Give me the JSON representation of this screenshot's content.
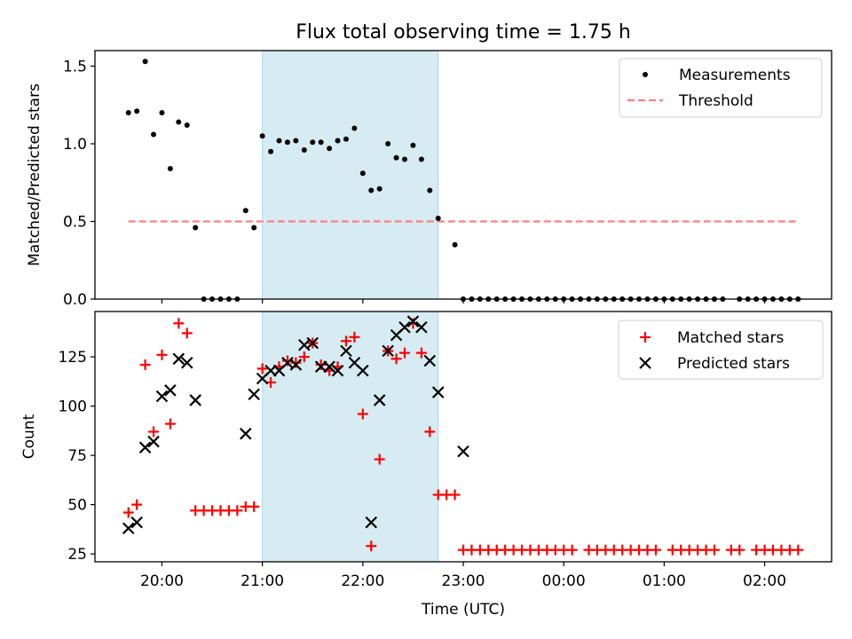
{
  "title": "Flux total observing time = 1.75 h",
  "colors": {
    "measurement": "#000000",
    "threshold": "#ff7f7f",
    "matched": "#ff0000",
    "predicted": "#000000",
    "highlight": "#add8e6"
  },
  "chart_data": [
    {
      "type": "scatter",
      "ylabel": "Matched/Predicted stars",
      "xlabel": "",
      "x_axis_type": "time",
      "xlim": [
        "19:20",
        "02:40"
      ],
      "ylim": [
        0,
        1.6
      ],
      "yticks": [
        0.0,
        0.5,
        1.0,
        1.5
      ],
      "ytick_labels": [
        "0.0",
        "0.5",
        "1.0",
        "1.5"
      ],
      "legend": {
        "placement": "top-right",
        "entries": [
          "Measurements",
          "Threshold"
        ]
      },
      "highlight_span": [
        "21:00",
        "22:45"
      ],
      "threshold": {
        "name": "Threshold",
        "value": 0.5,
        "x_range": [
          "19:40",
          "02:20"
        ]
      },
      "series": [
        {
          "name": "Measurements",
          "marker": "dot",
          "points": [
            [
              "19:40",
              1.2
            ],
            [
              "19:45",
              1.21
            ],
            [
              "19:50",
              1.53
            ],
            [
              "19:55",
              1.06
            ],
            [
              "20:00",
              1.2
            ],
            [
              "20:05",
              0.84
            ],
            [
              "20:10",
              1.14
            ],
            [
              "20:15",
              1.12
            ],
            [
              "20:20",
              0.46
            ],
            [
              "20:25",
              0.0
            ],
            [
              "20:30",
              0.0
            ],
            [
              "20:35",
              0.0
            ],
            [
              "20:40",
              0.0
            ],
            [
              "20:45",
              0.0
            ],
            [
              "20:50",
              0.57
            ],
            [
              "20:55",
              0.46
            ],
            [
              "21:00",
              1.05
            ],
            [
              "21:05",
              0.95
            ],
            [
              "21:10",
              1.02
            ],
            [
              "21:15",
              1.01
            ],
            [
              "21:20",
              1.02
            ],
            [
              "21:25",
              0.96
            ],
            [
              "21:30",
              1.01
            ],
            [
              "21:35",
              1.01
            ],
            [
              "21:40",
              0.97
            ],
            [
              "21:45",
              1.02
            ],
            [
              "21:50",
              1.03
            ],
            [
              "21:55",
              1.1
            ],
            [
              "22:00",
              0.81
            ],
            [
              "22:05",
              0.7
            ],
            [
              "22:10",
              0.71
            ],
            [
              "22:15",
              1.0
            ],
            [
              "22:20",
              0.91
            ],
            [
              "22:25",
              0.9
            ],
            [
              "22:30",
              0.99
            ],
            [
              "22:35",
              0.9
            ],
            [
              "22:40",
              0.7
            ],
            [
              "22:45",
              0.52
            ],
            [
              "22:55",
              0.35
            ],
            [
              "23:00",
              0.0
            ],
            [
              "23:05",
              0.0
            ],
            [
              "23:10",
              0.0
            ],
            [
              "23:15",
              0.0
            ],
            [
              "23:20",
              0.0
            ],
            [
              "23:25",
              0.0
            ],
            [
              "23:30",
              0.0
            ],
            [
              "23:35",
              0.0
            ],
            [
              "23:40",
              0.0
            ],
            [
              "23:45",
              0.0
            ],
            [
              "23:50",
              0.0
            ],
            [
              "23:55",
              0.0
            ],
            [
              "00:00",
              0.0
            ],
            [
              "00:05",
              0.0
            ],
            [
              "00:10",
              0.0
            ],
            [
              "00:15",
              0.0
            ],
            [
              "00:20",
              0.0
            ],
            [
              "00:25",
              0.0
            ],
            [
              "00:30",
              0.0
            ],
            [
              "00:35",
              0.0
            ],
            [
              "00:40",
              0.0
            ],
            [
              "00:45",
              0.0
            ],
            [
              "00:50",
              0.0
            ],
            [
              "00:55",
              0.0
            ],
            [
              "01:00",
              0.0
            ],
            [
              "01:05",
              0.0
            ],
            [
              "01:10",
              0.0
            ],
            [
              "01:15",
              0.0
            ],
            [
              "01:20",
              0.0
            ],
            [
              "01:25",
              0.0
            ],
            [
              "01:30",
              0.0
            ],
            [
              "01:35",
              0.0
            ],
            [
              "01:45",
              0.0
            ],
            [
              "01:50",
              0.0
            ],
            [
              "01:55",
              0.0
            ],
            [
              "02:00",
              0.0
            ],
            [
              "02:05",
              0.0
            ],
            [
              "02:10",
              0.0
            ],
            [
              "02:15",
              0.0
            ],
            [
              "02:20",
              0.0
            ]
          ]
        }
      ]
    },
    {
      "type": "scatter",
      "ylabel": "Count",
      "xlabel": "Time (UTC)",
      "x_axis_type": "time",
      "xlim": [
        "19:20",
        "02:40"
      ],
      "ylim": [
        21,
        148
      ],
      "yticks": [
        25,
        50,
        75,
        100,
        125
      ],
      "ytick_labels": [
        "25",
        "50",
        "75",
        "100",
        "125"
      ],
      "xticks": [
        "20:00",
        "21:00",
        "22:00",
        "23:00",
        "00:00",
        "01:00",
        "02:00"
      ],
      "xtick_labels": [
        "20:00",
        "21:00",
        "22:00",
        "23:00",
        "00:00",
        "01:00",
        "02:00"
      ],
      "legend": {
        "placement": "top-right",
        "entries": [
          "Matched stars",
          "Predicted stars"
        ]
      },
      "highlight_span": [
        "21:00",
        "22:45"
      ],
      "series": [
        {
          "name": "Matched stars",
          "marker": "plus",
          "points": [
            [
              "19:40",
              46
            ],
            [
              "19:45",
              50
            ],
            [
              "19:50",
              121
            ],
            [
              "19:55",
              87
            ],
            [
              "20:00",
              126
            ],
            [
              "20:05",
              91
            ],
            [
              "20:10",
              142
            ],
            [
              "20:15",
              137
            ],
            [
              "20:20",
              47
            ],
            [
              "20:25",
              47
            ],
            [
              "20:30",
              47
            ],
            [
              "20:35",
              47
            ],
            [
              "20:40",
              47
            ],
            [
              "20:45",
              47
            ],
            [
              "20:50",
              49
            ],
            [
              "20:55",
              49
            ],
            [
              "21:00",
              119
            ],
            [
              "21:05",
              112
            ],
            [
              "21:10",
              120
            ],
            [
              "21:15",
              123
            ],
            [
              "21:20",
              122
            ],
            [
              "21:25",
              125
            ],
            [
              "21:30",
              132
            ],
            [
              "21:35",
              121
            ],
            [
              "21:40",
              118
            ],
            [
              "21:45",
              120
            ],
            [
              "21:50",
              133
            ],
            [
              "21:55",
              135
            ],
            [
              "22:00",
              96
            ],
            [
              "22:05",
              29
            ],
            [
              "22:10",
              73
            ],
            [
              "22:15",
              128
            ],
            [
              "22:20",
              124
            ],
            [
              "22:25",
              127
            ],
            [
              "22:30",
              142
            ],
            [
              "22:35",
              127
            ],
            [
              "22:40",
              87
            ],
            [
              "22:45",
              55
            ],
            [
              "22:50",
              55
            ],
            [
              "22:55",
              55
            ],
            [
              "23:00",
              27
            ],
            [
              "23:05",
              27
            ],
            [
              "23:10",
              27
            ],
            [
              "23:15",
              27
            ],
            [
              "23:20",
              27
            ],
            [
              "23:25",
              27
            ],
            [
              "23:30",
              27
            ],
            [
              "23:35",
              27
            ],
            [
              "23:40",
              27
            ],
            [
              "23:45",
              27
            ],
            [
              "23:50",
              27
            ],
            [
              "23:55",
              27
            ],
            [
              "00:00",
              27
            ],
            [
              "00:05",
              27
            ],
            [
              "00:15",
              27
            ],
            [
              "00:20",
              27
            ],
            [
              "00:25",
              27
            ],
            [
              "00:30",
              27
            ],
            [
              "00:35",
              27
            ],
            [
              "00:40",
              27
            ],
            [
              "00:45",
              27
            ],
            [
              "00:50",
              27
            ],
            [
              "00:55",
              27
            ],
            [
              "01:05",
              27
            ],
            [
              "01:10",
              27
            ],
            [
              "01:15",
              27
            ],
            [
              "01:20",
              27
            ],
            [
              "01:25",
              27
            ],
            [
              "01:30",
              27
            ],
            [
              "01:40",
              27
            ],
            [
              "01:45",
              27
            ],
            [
              "01:55",
              27
            ],
            [
              "02:00",
              27
            ],
            [
              "02:05",
              27
            ],
            [
              "02:10",
              27
            ],
            [
              "02:15",
              27
            ],
            [
              "02:20",
              27
            ]
          ]
        },
        {
          "name": "Predicted stars",
          "marker": "x",
          "points": [
            [
              "19:40",
              38
            ],
            [
              "19:45",
              41
            ],
            [
              "19:50",
              79
            ],
            [
              "19:55",
              82
            ],
            [
              "20:00",
              105
            ],
            [
              "20:05",
              108
            ],
            [
              "20:10",
              124
            ],
            [
              "20:15",
              122
            ],
            [
              "20:20",
              103
            ],
            [
              "20:50",
              86
            ],
            [
              "20:55",
              106
            ],
            [
              "21:00",
              114
            ],
            [
              "21:05",
              118
            ],
            [
              "21:10",
              118
            ],
            [
              "21:15",
              122
            ],
            [
              "21:20",
              121
            ],
            [
              "21:25",
              131
            ],
            [
              "21:30",
              132
            ],
            [
              "21:35",
              120
            ],
            [
              "21:40",
              120
            ],
            [
              "21:45",
              118
            ],
            [
              "21:50",
              128
            ],
            [
              "21:55",
              122
            ],
            [
              "22:00",
              118
            ],
            [
              "22:05",
              41
            ],
            [
              "22:10",
              103
            ],
            [
              "22:15",
              128
            ],
            [
              "22:20",
              136
            ],
            [
              "22:25",
              140
            ],
            [
              "22:30",
              143
            ],
            [
              "22:35",
              140
            ],
            [
              "22:40",
              123
            ],
            [
              "22:45",
              107
            ],
            [
              "23:00",
              77
            ]
          ]
        }
      ]
    }
  ]
}
